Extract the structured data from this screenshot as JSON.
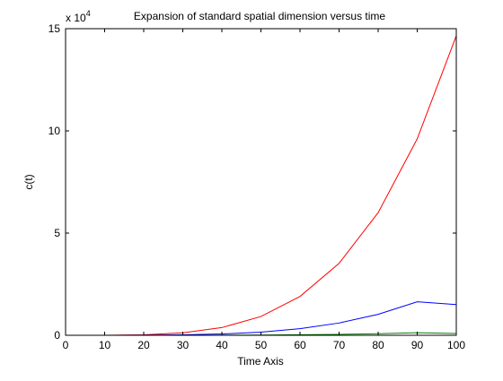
{
  "chart_data": {
    "type": "line",
    "title": "Expansion of standard spatial dimension versus time",
    "xlabel": "Time Axis",
    "ylabel": "c(t)",
    "y_exponent_label": "x 10",
    "y_exponent_power": "4",
    "xlim": [
      0,
      100
    ],
    "ylim": [
      0,
      150000
    ],
    "x_ticks": [
      0,
      10,
      20,
      30,
      40,
      50,
      60,
      70,
      80,
      90,
      100
    ],
    "x_tick_labels": [
      "0",
      "10",
      "20",
      "30",
      "40",
      "50",
      "60",
      "70",
      "80",
      "90",
      "100"
    ],
    "y_ticks": [
      0,
      50000,
      100000,
      150000
    ],
    "y_tick_labels": [
      "0",
      "5",
      "10",
      "15"
    ],
    "grid": false,
    "x": [
      0,
      10,
      20,
      30,
      40,
      50,
      60,
      70,
      80,
      90,
      100
    ],
    "series": [
      {
        "color": "#ff0000",
        "values": [
          0,
          15,
          230,
          1190,
          3760,
          9180,
          19000,
          35200,
          60000,
          96100,
          146500
        ]
      },
      {
        "color": "#0000ff",
        "values": [
          0,
          2,
          40,
          200,
          640,
          1560,
          3240,
          6000,
          10250,
          16400,
          15000
        ]
      },
      {
        "color": "#008000",
        "values": [
          0,
          0,
          3,
          15,
          50,
          120,
          250,
          460,
          790,
          1260,
          900
        ]
      }
    ]
  }
}
